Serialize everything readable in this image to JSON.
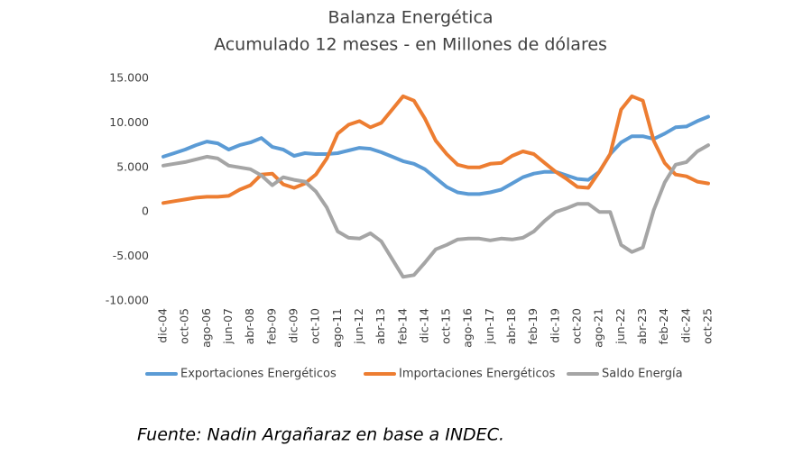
{
  "chart_data": {
    "type": "line",
    "title": "Balanza Energética",
    "subtitle": "Acumulado 12 meses - en Millones de dólares",
    "source": "Fuente: Nadin Argañaraz en base a INDEC.",
    "categories": [
      "dic-04",
      null,
      "oct-05",
      null,
      "ago-06",
      null,
      "jun-07",
      null,
      "abr-08",
      null,
      "feb-09",
      null,
      "dic-09",
      null,
      "oct-10",
      null,
      "ago-11",
      null,
      "jun-12",
      null,
      "abr-13",
      null,
      "feb-14",
      null,
      "dic-14",
      null,
      "oct-15",
      null,
      "ago-16",
      null,
      "jun-17",
      null,
      "abr-18",
      null,
      "feb-19",
      null,
      "dic-19",
      null,
      "oct-20",
      null,
      "ago-21",
      null,
      "jun-22",
      null,
      "abr-23",
      null,
      "feb-24",
      null,
      "dic-24",
      null,
      "oct-25"
    ],
    "series": [
      {
        "name": "Exportaciones Energéticos",
        "color": "#5b9bd5",
        "values": [
          6200,
          6600,
          7000,
          7500,
          7900,
          7700,
          7000,
          7500,
          7800,
          8300,
          7300,
          7000,
          6300,
          6600,
          6500,
          6500,
          6600,
          6900,
          7200,
          7100,
          6700,
          6200,
          5700,
          5400,
          4800,
          3800,
          2800,
          2200,
          2000,
          2000,
          2200,
          2500,
          3200,
          3900,
          4300,
          4500,
          4500,
          4100,
          3700,
          3600,
          4500,
          6500,
          7800,
          8500,
          8500,
          8200,
          8800,
          9500,
          9600,
          10200,
          10700
        ]
      },
      {
        "name": "Importaciones Energéticos",
        "color": "#ed7d31",
        "values": [
          1000,
          1200,
          1400,
          1600,
          1700,
          1700,
          1800,
          2500,
          3000,
          4200,
          4300,
          3100,
          2700,
          3200,
          4200,
          6000,
          8800,
          9800,
          10200,
          9500,
          10000,
          11500,
          13000,
          12500,
          10500,
          8000,
          6500,
          5300,
          5000,
          5000,
          5400,
          5500,
          6300,
          6800,
          6500,
          5500,
          4500,
          3700,
          2800,
          2700,
          4500,
          6500,
          11500,
          13000,
          12500,
          8000,
          5500,
          4200,
          4000,
          3400,
          3200
        ]
      },
      {
        "name": "Saldo Energía",
        "color": "#a5a5a5",
        "values": [
          5200,
          5400,
          5600,
          5900,
          6200,
          6000,
          5200,
          5000,
          4800,
          4100,
          3000,
          3900,
          3600,
          3400,
          2300,
          500,
          -2200,
          -2900,
          -3000,
          -2400,
          -3300,
          -5300,
          -7300,
          -7100,
          -5700,
          -4200,
          -3700,
          -3100,
          -3000,
          -3000,
          -3200,
          -3000,
          -3100,
          -2900,
          -2200,
          -1000,
          0,
          400,
          900,
          900,
          0,
          0,
          -3700,
          -4500,
          -4000,
          200,
          3300,
          5300,
          5600,
          6800,
          7500
        ]
      }
    ],
    "ylim": [
      -10000,
      15000
    ],
    "yticks": [
      {
        "value": -10000,
        "label": "-10.000"
      },
      {
        "value": -5000,
        "label": "-5.000"
      },
      0,
      {
        "value": 5000,
        "label": "5.000"
      },
      {
        "value": 10000,
        "label": "10.000"
      },
      {
        "value": 15000,
        "label": "15.000"
      }
    ],
    "grid": false,
    "legend": "bottom"
  }
}
